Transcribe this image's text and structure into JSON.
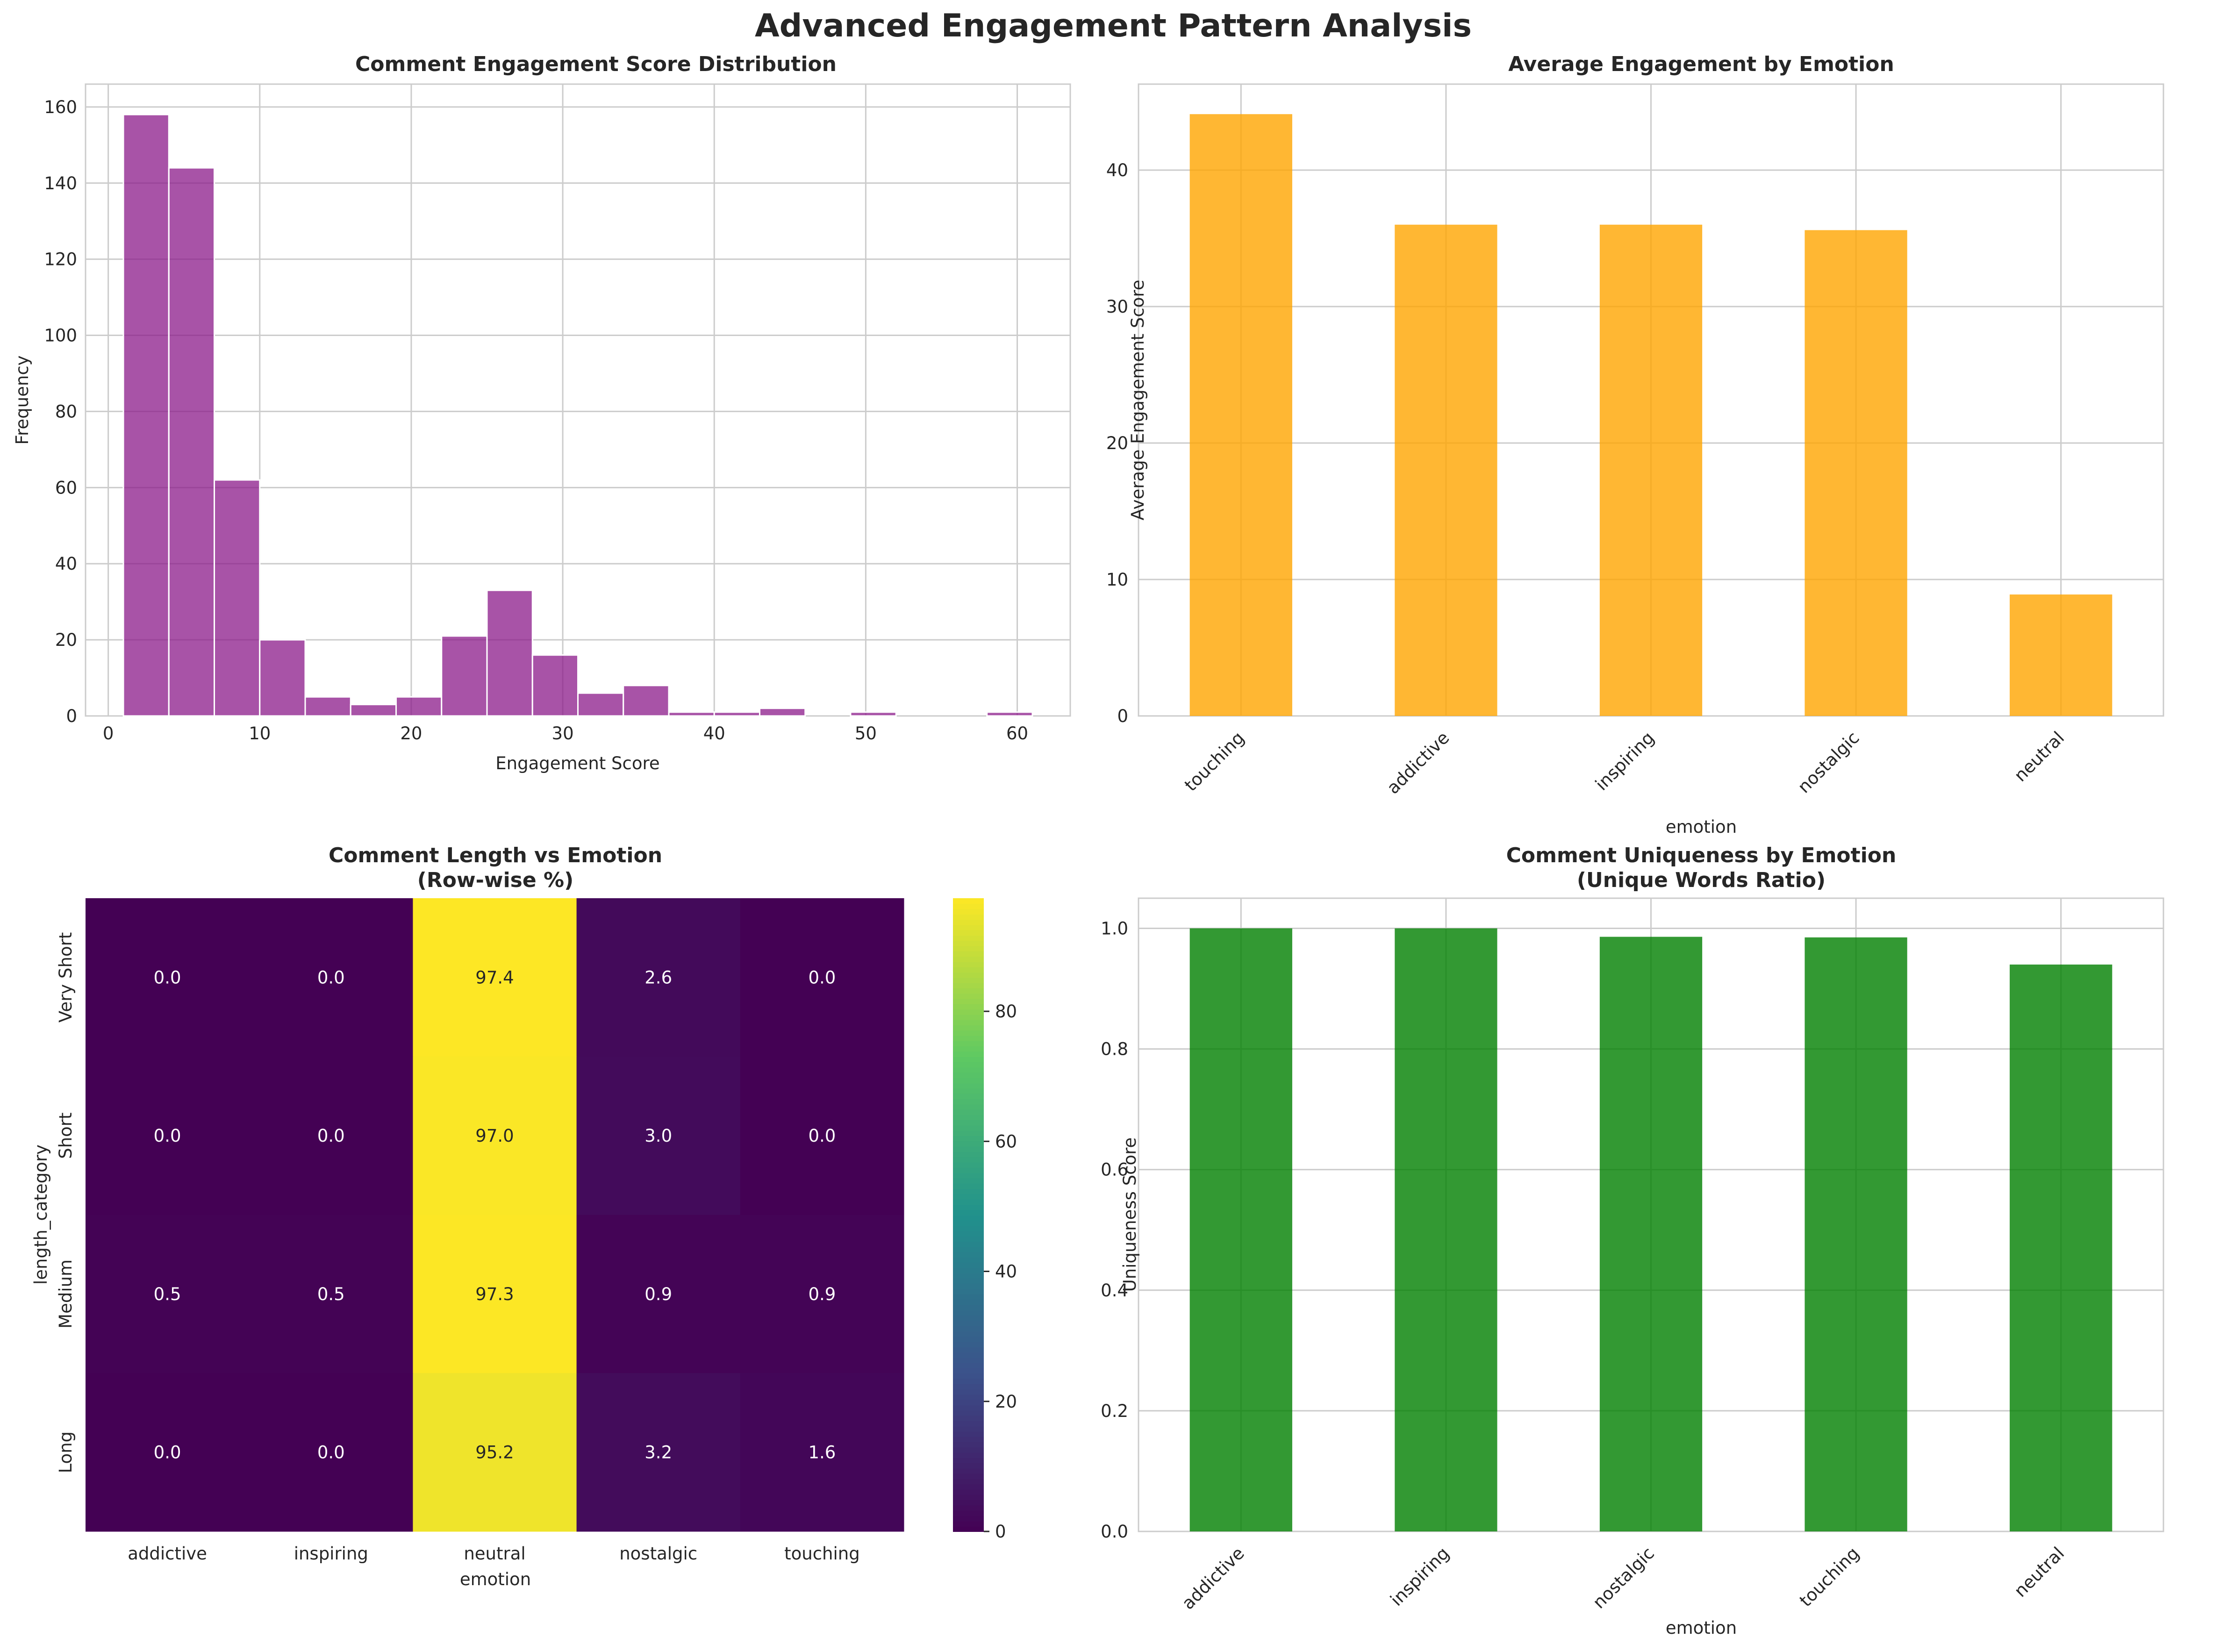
{
  "figure": {
    "title": "Advanced Engagement Pattern Analysis"
  },
  "colors": {
    "histogram": "#8b1a89",
    "bar_emotion": "#ffa500",
    "bar_uniqueness": "#008000",
    "grid": "#cccccc",
    "axes_edge": "#cccccc"
  },
  "chart_data": [
    {
      "type": "bar",
      "subtype": "histogram",
      "title": "Comment Engagement Score Distribution",
      "xlabel": "Engagement Score",
      "ylabel": "Frequency",
      "bin_edges": [
        1,
        4,
        7,
        10,
        13,
        16,
        19,
        22,
        25,
        28,
        31,
        34,
        37,
        40,
        43,
        46,
        49,
        52,
        55,
        58,
        61
      ],
      "values": [
        158,
        144,
        62,
        20,
        5,
        3,
        5,
        21,
        33,
        16,
        6,
        8,
        1,
        1,
        2,
        0,
        1,
        0,
        0,
        1
      ],
      "xlim": [
        -1.5,
        63.5
      ],
      "ylim": [
        0,
        166
      ],
      "xticks": [
        "0",
        "10",
        "20",
        "30",
        "40",
        "50",
        "60"
      ],
      "xtick_values": [
        0,
        10,
        20,
        30,
        40,
        50,
        60
      ],
      "yticks": [
        "0",
        "20",
        "40",
        "60",
        "80",
        "100",
        "120",
        "140",
        "160"
      ],
      "ytick_values": [
        0,
        20,
        40,
        60,
        80,
        100,
        120,
        140,
        160
      ],
      "grid": true
    },
    {
      "type": "bar",
      "title": "Average Engagement by Emotion",
      "xlabel": "emotion",
      "ylabel": "Average Engagement Score",
      "categories": [
        "touching",
        "addictive",
        "inspiring",
        "nostalgic",
        "neutral"
      ],
      "values": [
        44.1,
        36.0,
        36.0,
        35.6,
        8.9
      ],
      "ylim": [
        0,
        46.3
      ],
      "yticks": [
        "0",
        "10",
        "20",
        "30",
        "40"
      ],
      "ytick_values": [
        0,
        10,
        20,
        30,
        40
      ],
      "grid": true
    },
    {
      "type": "heatmap",
      "title": "Comment Length vs Emotion",
      "subtitle": "(Row-wise %)",
      "xlabel": "emotion",
      "ylabel": "length_category",
      "columns": [
        "addictive",
        "inspiring",
        "neutral",
        "nostalgic",
        "touching"
      ],
      "rows": [
        "Very Short",
        "Short",
        "Medium",
        "Long"
      ],
      "values": [
        [
          0.0,
          0.0,
          97.4,
          2.6,
          0.0
        ],
        [
          0.0,
          0.0,
          97.0,
          3.0,
          0.0
        ],
        [
          0.5,
          0.5,
          97.3,
          0.9,
          0.9
        ],
        [
          0.0,
          0.0,
          95.2,
          3.2,
          1.6
        ]
      ],
      "labels": [
        [
          "0.0",
          "0.0",
          "97.4",
          "2.6",
          "0.0"
        ],
        [
          "0.0",
          "0.0",
          "97.0",
          "3.0",
          "0.0"
        ],
        [
          "0.5",
          "0.5",
          "97.3",
          "0.9",
          "0.9"
        ],
        [
          "0.0",
          "0.0",
          "95.2",
          "3.2",
          "1.6"
        ]
      ],
      "colormap": "viridis",
      "vmin": 0,
      "vmax": 97.4,
      "colorbar_ticks": [
        "0",
        "20",
        "40",
        "60",
        "80"
      ],
      "colorbar_tick_values": [
        0,
        20,
        40,
        60,
        80
      ]
    },
    {
      "type": "bar",
      "title": "Comment Uniqueness by Emotion",
      "subtitle": "(Unique Words Ratio)",
      "xlabel": "emotion",
      "ylabel": "Uniqueness Score",
      "categories": [
        "addictive",
        "inspiring",
        "nostalgic",
        "touching",
        "neutral"
      ],
      "values": [
        1.0,
        1.0,
        0.986,
        0.985,
        0.94
      ],
      "ylim": [
        0,
        1.05
      ],
      "yticks": [
        "0.0",
        "0.2",
        "0.4",
        "0.6",
        "0.8",
        "1.0"
      ],
      "ytick_values": [
        0.0,
        0.2,
        0.4,
        0.6,
        0.8,
        1.0
      ],
      "grid": true
    }
  ]
}
